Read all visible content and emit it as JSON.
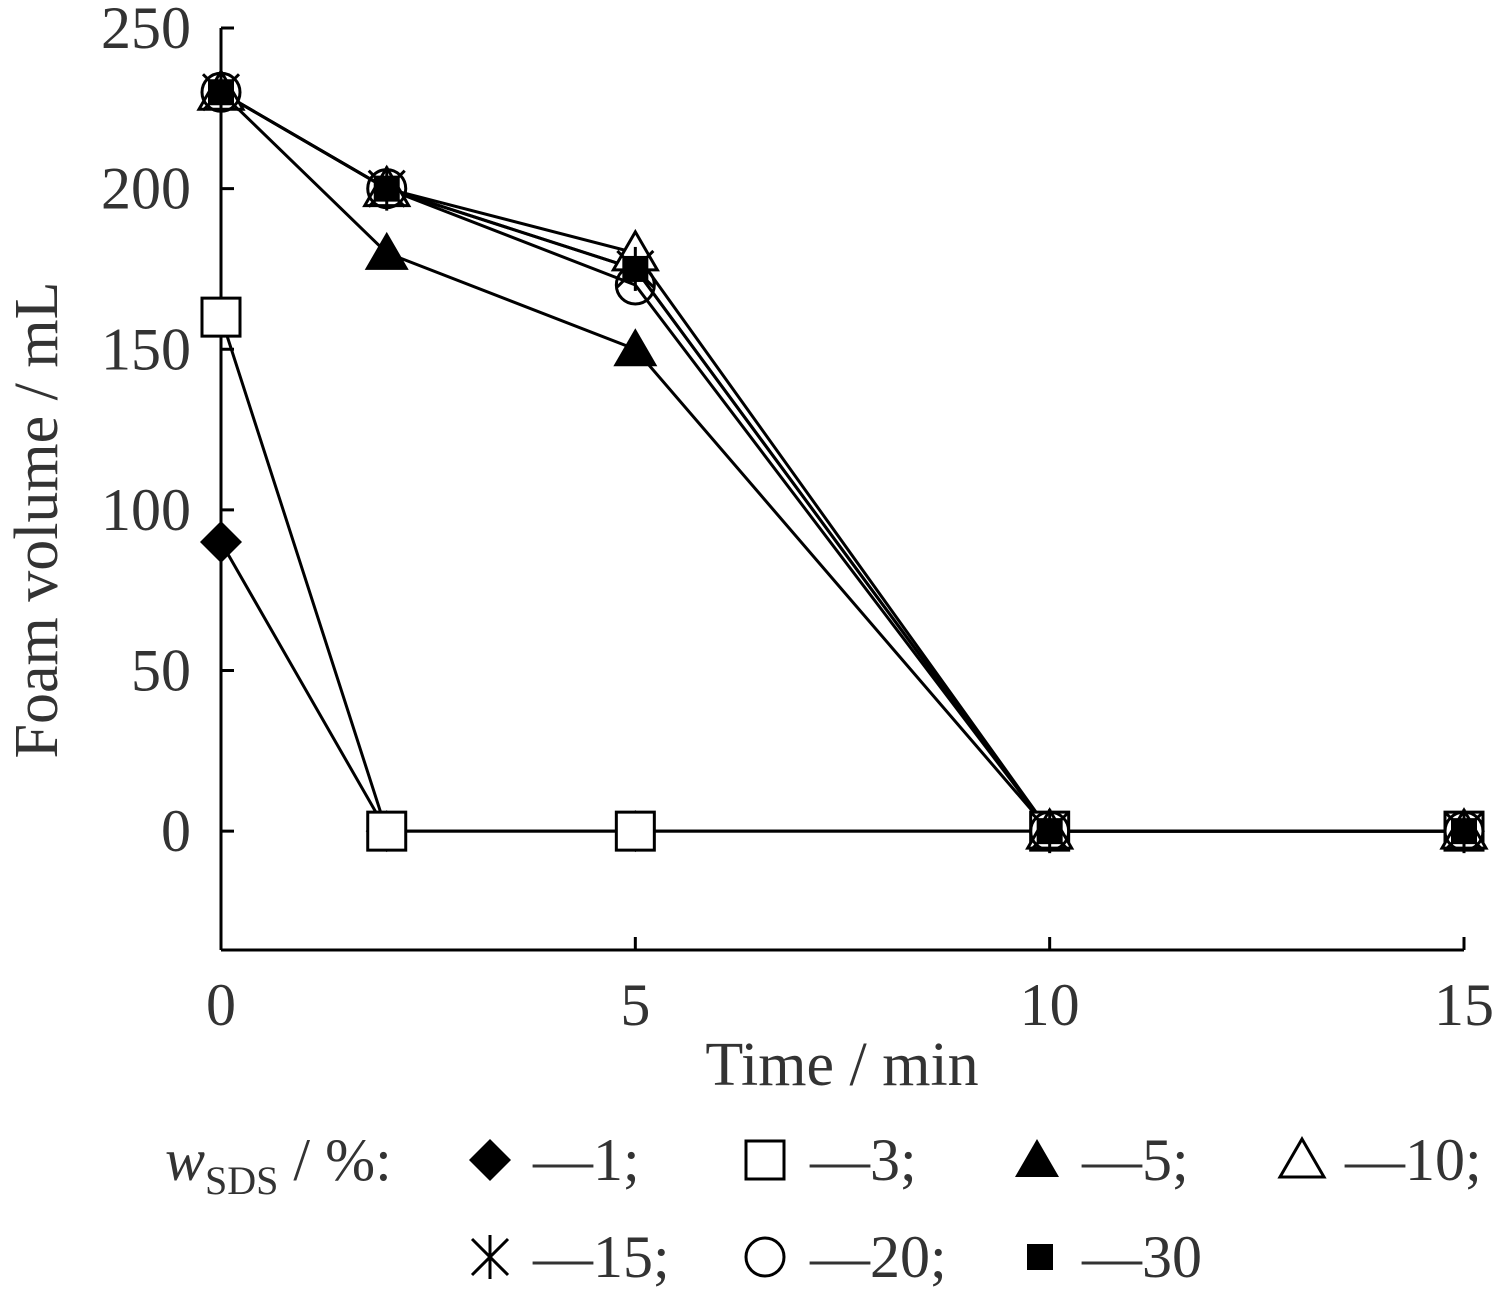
{
  "chart_data": {
    "type": "line",
    "title": "",
    "xlabel": "Time / min",
    "ylabel": "Foam volume / mL",
    "xlim": [
      0,
      15
    ],
    "ylim": [
      -37,
      250
    ],
    "x_ticks": [
      "0",
      "5",
      "10",
      "15"
    ],
    "y_ticks": [
      "0",
      "50",
      "100",
      "150",
      "200",
      "250"
    ],
    "x": [
      0,
      2,
      5,
      10,
      15
    ],
    "grid": false,
    "legend": {
      "position": "bottom",
      "var_main": "w",
      "var_sub": "SDS",
      "var_unit": " / %:",
      "entries": [
        "—1;",
        "—3;",
        "—5;",
        "—10;",
        "—15;",
        "—20;",
        "—30"
      ]
    },
    "series": [
      {
        "name": "1",
        "marker": "diamond-filled",
        "values": [
          90,
          0,
          0,
          0,
          0
        ]
      },
      {
        "name": "3",
        "marker": "square-open",
        "values": [
          160,
          0,
          0,
          0,
          0
        ]
      },
      {
        "name": "5",
        "marker": "triangle-filled",
        "values": [
          230,
          180,
          150,
          0,
          0
        ]
      },
      {
        "name": "10",
        "marker": "triangle-open",
        "values": [
          230,
          200,
          180,
          0,
          0
        ]
      },
      {
        "name": "15",
        "marker": "asterisk",
        "values": [
          230,
          200,
          175,
          0,
          0
        ]
      },
      {
        "name": "20",
        "marker": "circle-open",
        "values": [
          230,
          200,
          170,
          0,
          0
        ]
      },
      {
        "name": "30",
        "marker": "square-filled",
        "values": [
          230,
          200,
          175,
          0,
          0
        ]
      }
    ]
  }
}
